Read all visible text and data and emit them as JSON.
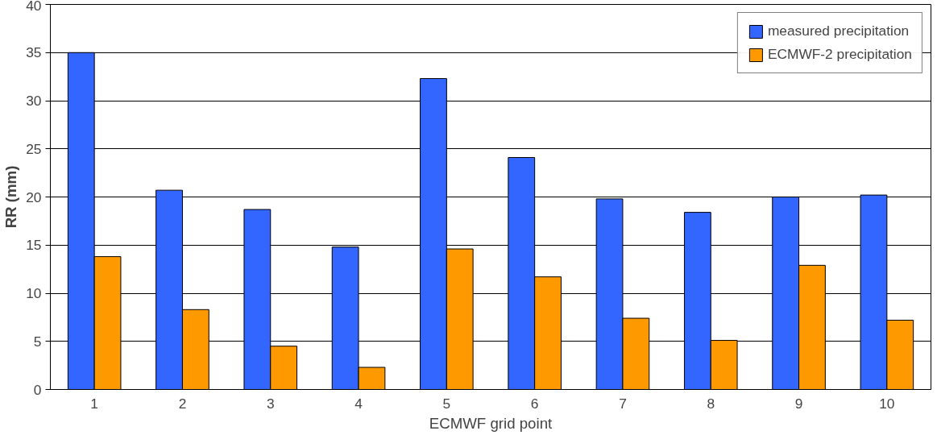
{
  "chart_data": {
    "type": "bar",
    "xlabel": "ECMWF grid point",
    "ylabel": "RR (mm)",
    "categories": [
      "1",
      "2",
      "3",
      "4",
      "5",
      "6",
      "7",
      "8",
      "9",
      "10"
    ],
    "series": [
      {
        "name": "measured precipitation",
        "color": "#3366ff",
        "values": [
          35.0,
          20.7,
          18.7,
          14.8,
          32.3,
          24.1,
          19.8,
          18.4,
          20.0,
          20.2
        ]
      },
      {
        "name": "ECMWF-2 precipitation",
        "color": "#ff9900",
        "values": [
          13.8,
          8.3,
          4.5,
          2.3,
          14.6,
          11.7,
          7.4,
          5.1,
          12.9,
          7.2
        ]
      }
    ],
    "ylim": [
      0,
      40
    ],
    "yticks": [
      0,
      5,
      10,
      15,
      20,
      25,
      30,
      35,
      40
    ],
    "grid": "y",
    "legend": "top right"
  }
}
